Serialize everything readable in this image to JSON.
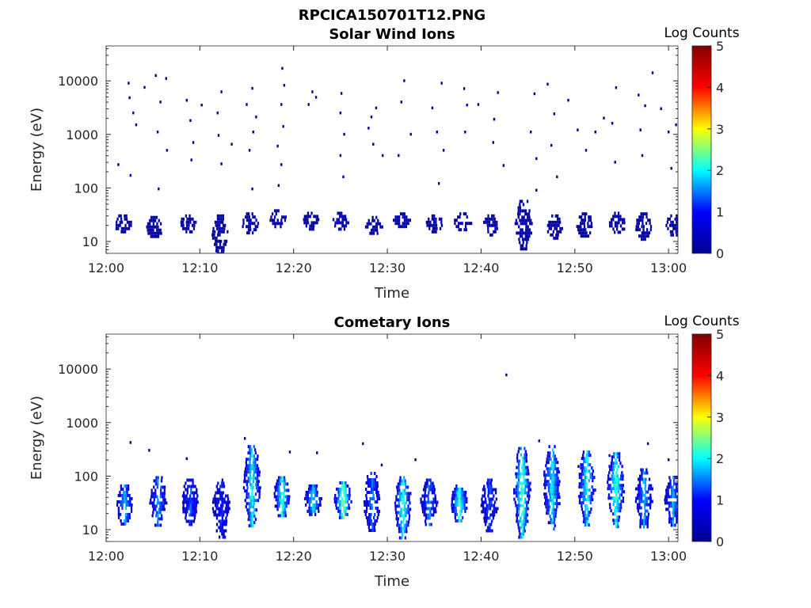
{
  "figure_title": "RPCICA150701T12.PNG",
  "colors": {
    "colormap": [
      "#00008f",
      "#0000ff",
      "#00ffff",
      "#ffff00",
      "#ff0000",
      "#800000"
    ],
    "axes": "#262626"
  },
  "chart_data": [
    {
      "type": "heatmap",
      "title": "Solar Wind Ions",
      "xlabel": "Time",
      "ylabel": "Energy (eV)",
      "x_tick_labels": [
        "12:00",
        "12:10",
        "12:20",
        "12:30",
        "12:40",
        "12:50",
        "13:00"
      ],
      "xlim": [
        "12:00",
        "13:01"
      ],
      "y_scale": "log",
      "y_tick_labels": [
        "10",
        "100",
        "1000",
        "10000"
      ],
      "ylim": [
        6,
        45000
      ],
      "colorbar": {
        "label": "Log Counts",
        "range": [
          0,
          5
        ],
        "tick_labels": [
          "0",
          "1",
          "2",
          "3",
          "4",
          "5"
        ]
      },
      "value_units": "log10 counts",
      "blocks": [
        {
          "t": 1.7,
          "e_lo": 15,
          "e_hi": 32,
          "v": 0.2
        },
        {
          "t": 5.1,
          "e_lo": 12,
          "e_hi": 30,
          "v": 0.2
        },
        {
          "t": 8.7,
          "e_lo": 15,
          "e_hi": 32,
          "v": 0.2
        },
        {
          "t": 12.1,
          "e_lo": 6,
          "e_hi": 32,
          "v": 0.2
        },
        {
          "t": 15.3,
          "e_lo": 14,
          "e_hi": 35,
          "v": 0.3
        },
        {
          "t": 18.3,
          "e_lo": 20,
          "e_hi": 40,
          "v": 0.3
        },
        {
          "t": 21.8,
          "e_lo": 18,
          "e_hi": 36,
          "v": 0.3
        },
        {
          "t": 25.0,
          "e_lo": 16,
          "e_hi": 36,
          "v": 0.3
        },
        {
          "t": 28.5,
          "e_lo": 14,
          "e_hi": 30,
          "v": 0.2
        },
        {
          "t": 31.5,
          "e_lo": 18,
          "e_hi": 35,
          "v": 0.3
        },
        {
          "t": 35.0,
          "e_lo": 16,
          "e_hi": 32,
          "v": 0.2
        },
        {
          "t": 38.0,
          "e_lo": 16,
          "e_hi": 35,
          "v": 0.2
        },
        {
          "t": 41.0,
          "e_lo": 14,
          "e_hi": 32,
          "v": 0.2
        },
        {
          "t": 44.5,
          "e_lo": 7,
          "e_hi": 60,
          "v": 0.3
        },
        {
          "t": 47.8,
          "e_lo": 12,
          "e_hi": 32,
          "v": 0.2
        },
        {
          "t": 51.0,
          "e_lo": 12,
          "e_hi": 35,
          "v": 0.2
        },
        {
          "t": 54.5,
          "e_lo": 14,
          "e_hi": 36,
          "v": 0.3
        },
        {
          "t": 57.3,
          "e_lo": 11,
          "e_hi": 35,
          "v": 0.3
        },
        {
          "t": 60.5,
          "e_lo": 13,
          "e_hi": 32,
          "v": 0.2
        }
      ],
      "points": [
        {
          "t": 1.3,
          "e": 270
        },
        {
          "t": 2.4,
          "e": 9000
        },
        {
          "t": 2.5,
          "e": 4800
        },
        {
          "t": 2.9,
          "e": 2500
        },
        {
          "t": 2.6,
          "e": 170
        },
        {
          "t": 3.2,
          "e": 1500
        },
        {
          "t": 4.1,
          "e": 7500
        },
        {
          "t": 5.3,
          "e": 12500
        },
        {
          "t": 5.8,
          "e": 4000
        },
        {
          "t": 6.4,
          "e": 11000
        },
        {
          "t": 5.5,
          "e": 1100
        },
        {
          "t": 6.5,
          "e": 500
        },
        {
          "t": 5.6,
          "e": 95
        },
        {
          "t": 8.6,
          "e": 4300
        },
        {
          "t": 9.0,
          "e": 1800
        },
        {
          "t": 9.3,
          "e": 700
        },
        {
          "t": 9.1,
          "e": 330
        },
        {
          "t": 10.2,
          "e": 3500
        },
        {
          "t": 12.3,
          "e": 6200
        },
        {
          "t": 11.9,
          "e": 2500
        },
        {
          "t": 12.0,
          "e": 950
        },
        {
          "t": 12.3,
          "e": 280
        },
        {
          "t": 13.4,
          "e": 650
        },
        {
          "t": 15.0,
          "e": 3600
        },
        {
          "t": 15.6,
          "e": 7200
        },
        {
          "t": 16.0,
          "e": 2100
        },
        {
          "t": 15.7,
          "e": 1100
        },
        {
          "t": 15.3,
          "e": 500
        },
        {
          "t": 15.6,
          "e": 95
        },
        {
          "t": 18.8,
          "e": 17000
        },
        {
          "t": 19.0,
          "e": 8200
        },
        {
          "t": 18.7,
          "e": 3600
        },
        {
          "t": 18.9,
          "e": 1400
        },
        {
          "t": 18.3,
          "e": 600
        },
        {
          "t": 18.7,
          "e": 270
        },
        {
          "t": 18.4,
          "e": 110
        },
        {
          "t": 22.0,
          "e": 6200
        },
        {
          "t": 21.6,
          "e": 3600
        },
        {
          "t": 22.4,
          "e": 4900
        },
        {
          "t": 25.1,
          "e": 5800
        },
        {
          "t": 25.0,
          "e": 2500
        },
        {
          "t": 25.4,
          "e": 1000
        },
        {
          "t": 25.0,
          "e": 400
        },
        {
          "t": 25.3,
          "e": 160
        },
        {
          "t": 28.3,
          "e": 2100
        },
        {
          "t": 28.8,
          "e": 3100
        },
        {
          "t": 28.0,
          "e": 1300
        },
        {
          "t": 28.5,
          "e": 650
        },
        {
          "t": 29.5,
          "e": 400
        },
        {
          "t": 31.8,
          "e": 10000
        },
        {
          "t": 31.5,
          "e": 4000
        },
        {
          "t": 32.5,
          "e": 1000
        },
        {
          "t": 31.2,
          "e": 400
        },
        {
          "t": 34.8,
          "e": 3100
        },
        {
          "t": 35.3,
          "e": 1100
        },
        {
          "t": 35.8,
          "e": 9000
        },
        {
          "t": 36.0,
          "e": 500
        },
        {
          "t": 35.5,
          "e": 120
        },
        {
          "t": 38.2,
          "e": 7100
        },
        {
          "t": 38.5,
          "e": 3500
        },
        {
          "t": 38.3,
          "e": 1100
        },
        {
          "t": 39.7,
          "e": 3600
        },
        {
          "t": 41.4,
          "e": 1900
        },
        {
          "t": 41.8,
          "e": 6000
        },
        {
          "t": 41.3,
          "e": 700
        },
        {
          "t": 42.4,
          "e": 260
        },
        {
          "t": 45.7,
          "e": 5700
        },
        {
          "t": 45.3,
          "e": 1100
        },
        {
          "t": 45.9,
          "e": 350
        },
        {
          "t": 45.9,
          "e": 90
        },
        {
          "t": 47.1,
          "e": 8600
        },
        {
          "t": 47.8,
          "e": 2400
        },
        {
          "t": 47.5,
          "e": 620
        },
        {
          "t": 48.1,
          "e": 160
        },
        {
          "t": 49.3,
          "e": 4300
        },
        {
          "t": 50.3,
          "e": 1200
        },
        {
          "t": 51.2,
          "e": 500
        },
        {
          "t": 52.2,
          "e": 1100
        },
        {
          "t": 53.1,
          "e": 2000
        },
        {
          "t": 54.4,
          "e": 7400
        },
        {
          "t": 54.0,
          "e": 1600
        },
        {
          "t": 54.3,
          "e": 300
        },
        {
          "t": 56.8,
          "e": 5400
        },
        {
          "t": 57.5,
          "e": 3400
        },
        {
          "t": 57.0,
          "e": 1200
        },
        {
          "t": 57.2,
          "e": 400
        },
        {
          "t": 58.3,
          "e": 14000
        },
        {
          "t": 59.2,
          "e": 3000
        },
        {
          "t": 60.0,
          "e": 1100
        },
        {
          "t": 60.3,
          "e": 230
        },
        {
          "t": 60.8,
          "e": 1500
        }
      ]
    },
    {
      "type": "heatmap",
      "title": "Cometary Ions",
      "xlabel": "Time",
      "ylabel": "Energy (eV)",
      "x_tick_labels": [
        "12:00",
        "12:10",
        "12:20",
        "12:30",
        "12:40",
        "12:50",
        "13:00"
      ],
      "xlim": [
        "12:00",
        "13:01"
      ],
      "y_scale": "log",
      "y_tick_labels": [
        "10",
        "100",
        "1000",
        "10000"
      ],
      "ylim": [
        6,
        45000
      ],
      "colorbar": {
        "label": "Log Counts",
        "range": [
          0,
          5
        ],
        "tick_labels": [
          "0",
          "1",
          "2",
          "3",
          "4",
          "5"
        ]
      },
      "value_units": "log10 counts",
      "blocks": [
        {
          "t": 1.9,
          "e_lo": 12,
          "e_hi": 70,
          "v": 1.6
        },
        {
          "t": 5.5,
          "e_lo": 12,
          "e_hi": 100,
          "v": 1.5
        },
        {
          "t": 8.9,
          "e_lo": 12,
          "e_hi": 90,
          "v": 1.2
        },
        {
          "t": 12.2,
          "e_lo": 7,
          "e_hi": 90,
          "v": 1.0
        },
        {
          "t": 15.5,
          "e_lo": 12,
          "e_hi": 380,
          "v": 1.9
        },
        {
          "t": 18.7,
          "e_lo": 18,
          "e_hi": 100,
          "v": 2.0
        },
        {
          "t": 22.0,
          "e_lo": 18,
          "e_hi": 70,
          "v": 1.7
        },
        {
          "t": 25.2,
          "e_lo": 16,
          "e_hi": 80,
          "v": 2.3
        },
        {
          "t": 28.3,
          "e_lo": 10,
          "e_hi": 120,
          "v": 1.4
        },
        {
          "t": 31.6,
          "e_lo": 7,
          "e_hi": 100,
          "v": 2.0
        },
        {
          "t": 34.4,
          "e_lo": 12,
          "e_hi": 90,
          "v": 1.4
        },
        {
          "t": 37.6,
          "e_lo": 14,
          "e_hi": 70,
          "v": 2.0
        },
        {
          "t": 40.8,
          "e_lo": 10,
          "e_hi": 90,
          "v": 1.2
        },
        {
          "t": 44.3,
          "e_lo": 7,
          "e_hi": 350,
          "v": 2.1
        },
        {
          "t": 47.5,
          "e_lo": 10,
          "e_hi": 380,
          "v": 1.8
        },
        {
          "t": 51.2,
          "e_lo": 12,
          "e_hi": 300,
          "v": 1.9
        },
        {
          "t": 54.3,
          "e_lo": 12,
          "e_hi": 280,
          "v": 2.0
        },
        {
          "t": 57.3,
          "e_lo": 12,
          "e_hi": 140,
          "v": 1.6
        },
        {
          "t": 60.4,
          "e_lo": 12,
          "e_hi": 100,
          "v": 1.5
        }
      ],
      "points": [
        {
          "t": 2.6,
          "e": 420
        },
        {
          "t": 4.6,
          "e": 300
        },
        {
          "t": 8.6,
          "e": 210
        },
        {
          "t": 14.8,
          "e": 500
        },
        {
          "t": 19.6,
          "e": 280
        },
        {
          "t": 22.5,
          "e": 270
        },
        {
          "t": 27.4,
          "e": 400
        },
        {
          "t": 29.4,
          "e": 160
        },
        {
          "t": 33.0,
          "e": 200
        },
        {
          "t": 42.7,
          "e": 7700
        },
        {
          "t": 46.2,
          "e": 450
        },
        {
          "t": 50.4,
          "e": 150
        },
        {
          "t": 53.7,
          "e": 240
        },
        {
          "t": 57.8,
          "e": 400
        },
        {
          "t": 60.0,
          "e": 200
        }
      ]
    }
  ]
}
